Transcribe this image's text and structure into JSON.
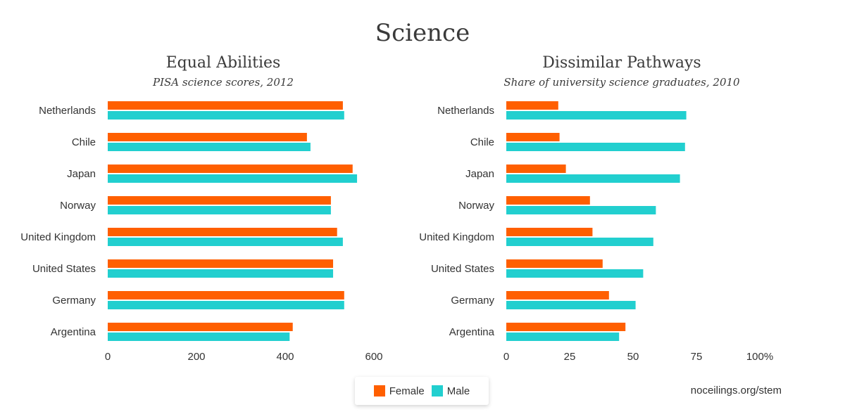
{
  "title": "Science",
  "source": "noceilings.org/stem",
  "colors": {
    "female": "#ff5f00",
    "male": "#22cfcf"
  },
  "legend": {
    "female": "Female",
    "male": "Male"
  },
  "chart_data": [
    {
      "type": "bar",
      "orientation": "horizontal",
      "title": "Equal Abilities",
      "subtitle": "PISA science scores, 2012",
      "categories": [
        "Netherlands",
        "Chile",
        "Japan",
        "Norway",
        "United Kingdom",
        "United States",
        "Germany",
        "Argentina"
      ],
      "series": [
        {
          "name": "Female",
          "values": [
            530,
            449,
            552,
            503,
            517,
            508,
            533,
            417
          ]
        },
        {
          "name": "Male",
          "values": [
            533,
            457,
            562,
            503,
            530,
            508,
            533,
            410
          ]
        }
      ],
      "xlim": [
        0,
        600
      ],
      "ticks": [
        "0",
        "200",
        "400",
        "600"
      ],
      "tick_values": [
        0,
        200,
        400,
        600
      ],
      "grid": false
    },
    {
      "type": "bar",
      "orientation": "horizontal",
      "title": "Dissimilar Pathways",
      "subtitle": "Share of university science graduates, 2010",
      "categories": [
        "Netherlands",
        "Chile",
        "Japan",
        "Norway",
        "United Kingdom",
        "United States",
        "Germany",
        "Argentina"
      ],
      "series": [
        {
          "name": "Female",
          "values": [
            20.5,
            21,
            23.5,
            33,
            34,
            38,
            40.5,
            47
          ]
        },
        {
          "name": "Male",
          "values": [
            71,
            70.5,
            68.5,
            59,
            58,
            54,
            51,
            44.5
          ]
        }
      ],
      "xlim": [
        0,
        100
      ],
      "ticks": [
        "0",
        "25",
        "50",
        "75",
        "100%"
      ],
      "tick_values": [
        0,
        25,
        50,
        75,
        100
      ],
      "grid": false
    }
  ]
}
